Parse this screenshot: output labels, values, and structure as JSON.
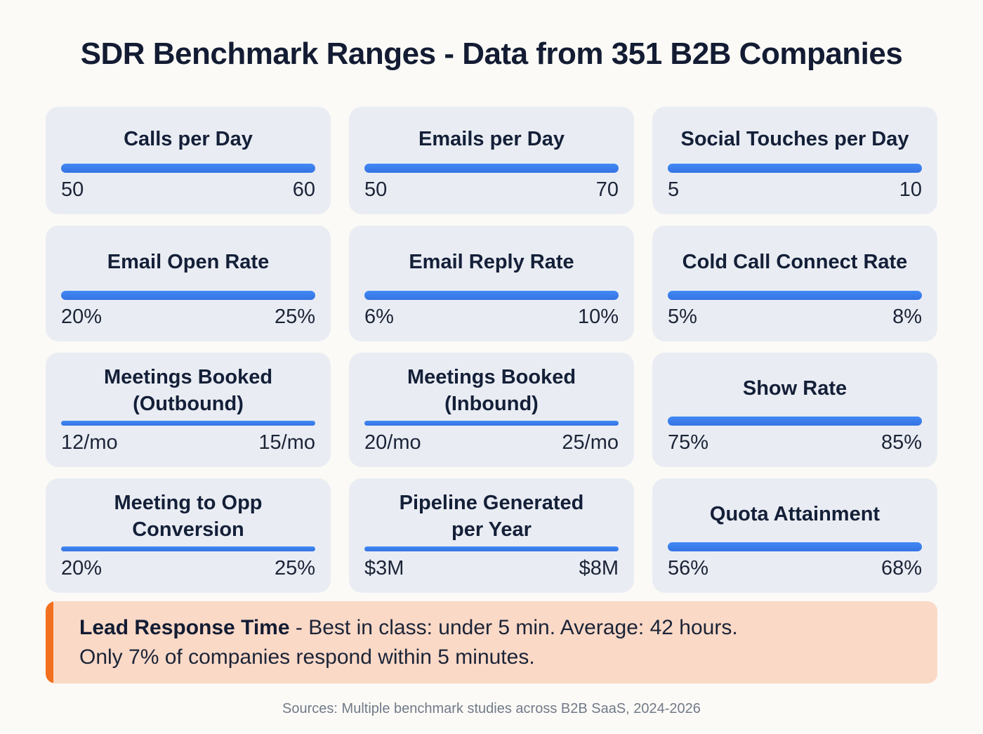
{
  "page": {
    "title": "SDR Benchmark Ranges - Data from 351 B2B Companies",
    "source_note": "Sources: Multiple benchmark studies across B2B SaaS, 2024-2026"
  },
  "colors": {
    "page_bg": "#fbfaf6",
    "card_bg": "#e9edf3",
    "bar_blue": "#3b7ef2",
    "title_navy": "#131c33",
    "callout_bg": "#fbd9c7",
    "callout_accent_orange": "#f2701f",
    "source_gray": "#717a89"
  },
  "cards": [
    {
      "title": "Calls per Day",
      "min": "50",
      "max": "60"
    },
    {
      "title": "Emails per Day",
      "min": "50",
      "max": "70"
    },
    {
      "title": "Social Touches per Day",
      "min": "5",
      "max": "10"
    },
    {
      "title": "Email Open Rate",
      "min": "20%",
      "max": "25%"
    },
    {
      "title": "Email Reply Rate",
      "min": "6%",
      "max": "10%"
    },
    {
      "title": "Cold Call Connect Rate",
      "min": "5%",
      "max": "8%"
    },
    {
      "title": "Meetings Booked\n(Outbound)",
      "min": "12/mo",
      "max": "15/mo"
    },
    {
      "title": "Meetings Booked\n(Inbound)",
      "min": "20/mo",
      "max": "25/mo"
    },
    {
      "title": "Show Rate",
      "min": "75%",
      "max": "85%"
    },
    {
      "title": "Meeting to Opp\nConversion",
      "min": "20%",
      "max": "25%"
    },
    {
      "title": "Pipeline Generated\nper Year",
      "min": "$3M",
      "max": "$8M"
    },
    {
      "title": "Quota Attainment",
      "min": "56%",
      "max": "68%"
    }
  ],
  "callout": {
    "heading": "Lead Response Time",
    "line1_rest": " - Best in class: under 5 min. Average: 42 hours.",
    "line2": "Only 7% of companies respond within 5 minutes."
  },
  "chart_data": {
    "type": "bar",
    "subtype": "range-bars",
    "title": "SDR Benchmark Ranges - Data from 351 B2B Companies",
    "sample_size": "351 B2B Companies",
    "legend_position": "none",
    "grid": false,
    "metrics": [
      {
        "label": "Calls per Day",
        "min_label": "50",
        "max_label": "60",
        "min": 50,
        "max": 60,
        "unit": "per day"
      },
      {
        "label": "Emails per Day",
        "min_label": "50",
        "max_label": "70",
        "min": 50,
        "max": 70,
        "unit": "per day"
      },
      {
        "label": "Social Touches per Day",
        "min_label": "5",
        "max_label": "10",
        "min": 5,
        "max": 10,
        "unit": "per day"
      },
      {
        "label": "Email Open Rate",
        "min_label": "20%",
        "max_label": "25%",
        "min": 20,
        "max": 25,
        "unit": "%"
      },
      {
        "label": "Email Reply Rate",
        "min_label": "6%",
        "max_label": "10%",
        "min": 6,
        "max": 10,
        "unit": "%"
      },
      {
        "label": "Cold Call Connect Rate",
        "min_label": "5%",
        "max_label": "8%",
        "min": 5,
        "max": 8,
        "unit": "%"
      },
      {
        "label": "Meetings Booked (Outbound)",
        "min_label": "12/mo",
        "max_label": "15/mo",
        "min": 12,
        "max": 15,
        "unit": "per month"
      },
      {
        "label": "Meetings Booked (Inbound)",
        "min_label": "20/mo",
        "max_label": "25/mo",
        "min": 20,
        "max": 25,
        "unit": "per month"
      },
      {
        "label": "Show Rate",
        "min_label": "75%",
        "max_label": "85%",
        "min": 75,
        "max": 85,
        "unit": "%"
      },
      {
        "label": "Meeting to Opp Conversion",
        "min_label": "20%",
        "max_label": "25%",
        "min": 20,
        "max": 25,
        "unit": "%"
      },
      {
        "label": "Pipeline Generated per Year",
        "min_label": "$3M",
        "max_label": "$8M",
        "min": 3,
        "max": 8,
        "unit": "$M per year"
      },
      {
        "label": "Quota Attainment",
        "min_label": "56%",
        "max_label": "68%",
        "min": 56,
        "max": 68,
        "unit": "%"
      }
    ],
    "annotation": "Lead Response Time - Best in class: under 5 min. Average: 42 hours. Only 7% of companies respond within 5 minutes.",
    "source": "Sources: Multiple benchmark studies across B2B SaaS, 2024-2026"
  }
}
